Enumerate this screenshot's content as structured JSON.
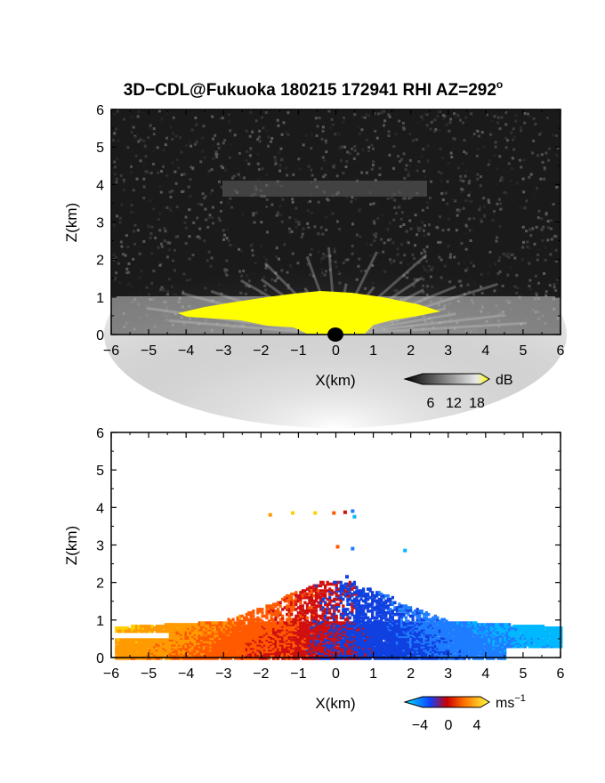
{
  "title_main": "3D−CDL@Fukuoka 180215 172941 RHI AZ=292",
  "title_sup": "o",
  "colors": {
    "background": "#ffffff",
    "panel_dark": "#1a1a1a",
    "saturated": "#ffff00",
    "negative_velocity": "#1f6fff",
    "positive_velocity": "#ff8a00"
  },
  "chart_data": [
    {
      "type": "heatmap",
      "name": "reflectivity-panel",
      "xlabel": "X(km)",
      "ylabel": "Z(km)",
      "xlim": [
        -6,
        6
      ],
      "ylim": [
        0,
        6
      ],
      "xticks": [
        "−6",
        "−5",
        "−4",
        "−3",
        "−2",
        "−1",
        "0",
        "1",
        "2",
        "3",
        "4",
        "5",
        "6"
      ],
      "yticks": [
        "0",
        "1",
        "2",
        "3",
        "4",
        "5",
        "6"
      ],
      "colorbar": {
        "unit": "dB",
        "ticks": [
          "6",
          "12",
          "18"
        ],
        "range": [
          0,
          20
        ],
        "palette": "grayscale-to-yellow"
      },
      "features": {
        "bright_layer_top_km": 1.0,
        "saturated_yellow_region": {
          "x_range": [
            -3.5,
            3.0
          ],
          "z_range": [
            0,
            0.9
          ]
        },
        "weak_echo_layer_km": [
          3.7,
          4.2
        ]
      }
    },
    {
      "type": "heatmap",
      "name": "velocity-panel",
      "xlabel": "X(km)",
      "ylabel": "Z(km)",
      "xlim": [
        -6,
        6
      ],
      "ylim": [
        0,
        6
      ],
      "xticks": [
        "−6",
        "−5",
        "−4",
        "−3",
        "−2",
        "−1",
        "0",
        "1",
        "2",
        "3",
        "4",
        "5",
        "6"
      ],
      "yticks": [
        "0",
        "1",
        "2",
        "3",
        "4",
        "5",
        "6"
      ],
      "colorbar": {
        "unit": "ms",
        "unit_sup": "−1",
        "ticks": [
          "−4",
          "0",
          "4"
        ],
        "range": [
          -5,
          5
        ],
        "palette": "blue-red-yellow"
      },
      "features": {
        "negative_side_x_range": [
          0.0,
          6.0
        ],
        "positive_side_x_range": [
          -6.0,
          0.0
        ],
        "echo_top_km": 2.0,
        "main_layer_z_range": [
          0.0,
          1.0
        ]
      }
    }
  ]
}
